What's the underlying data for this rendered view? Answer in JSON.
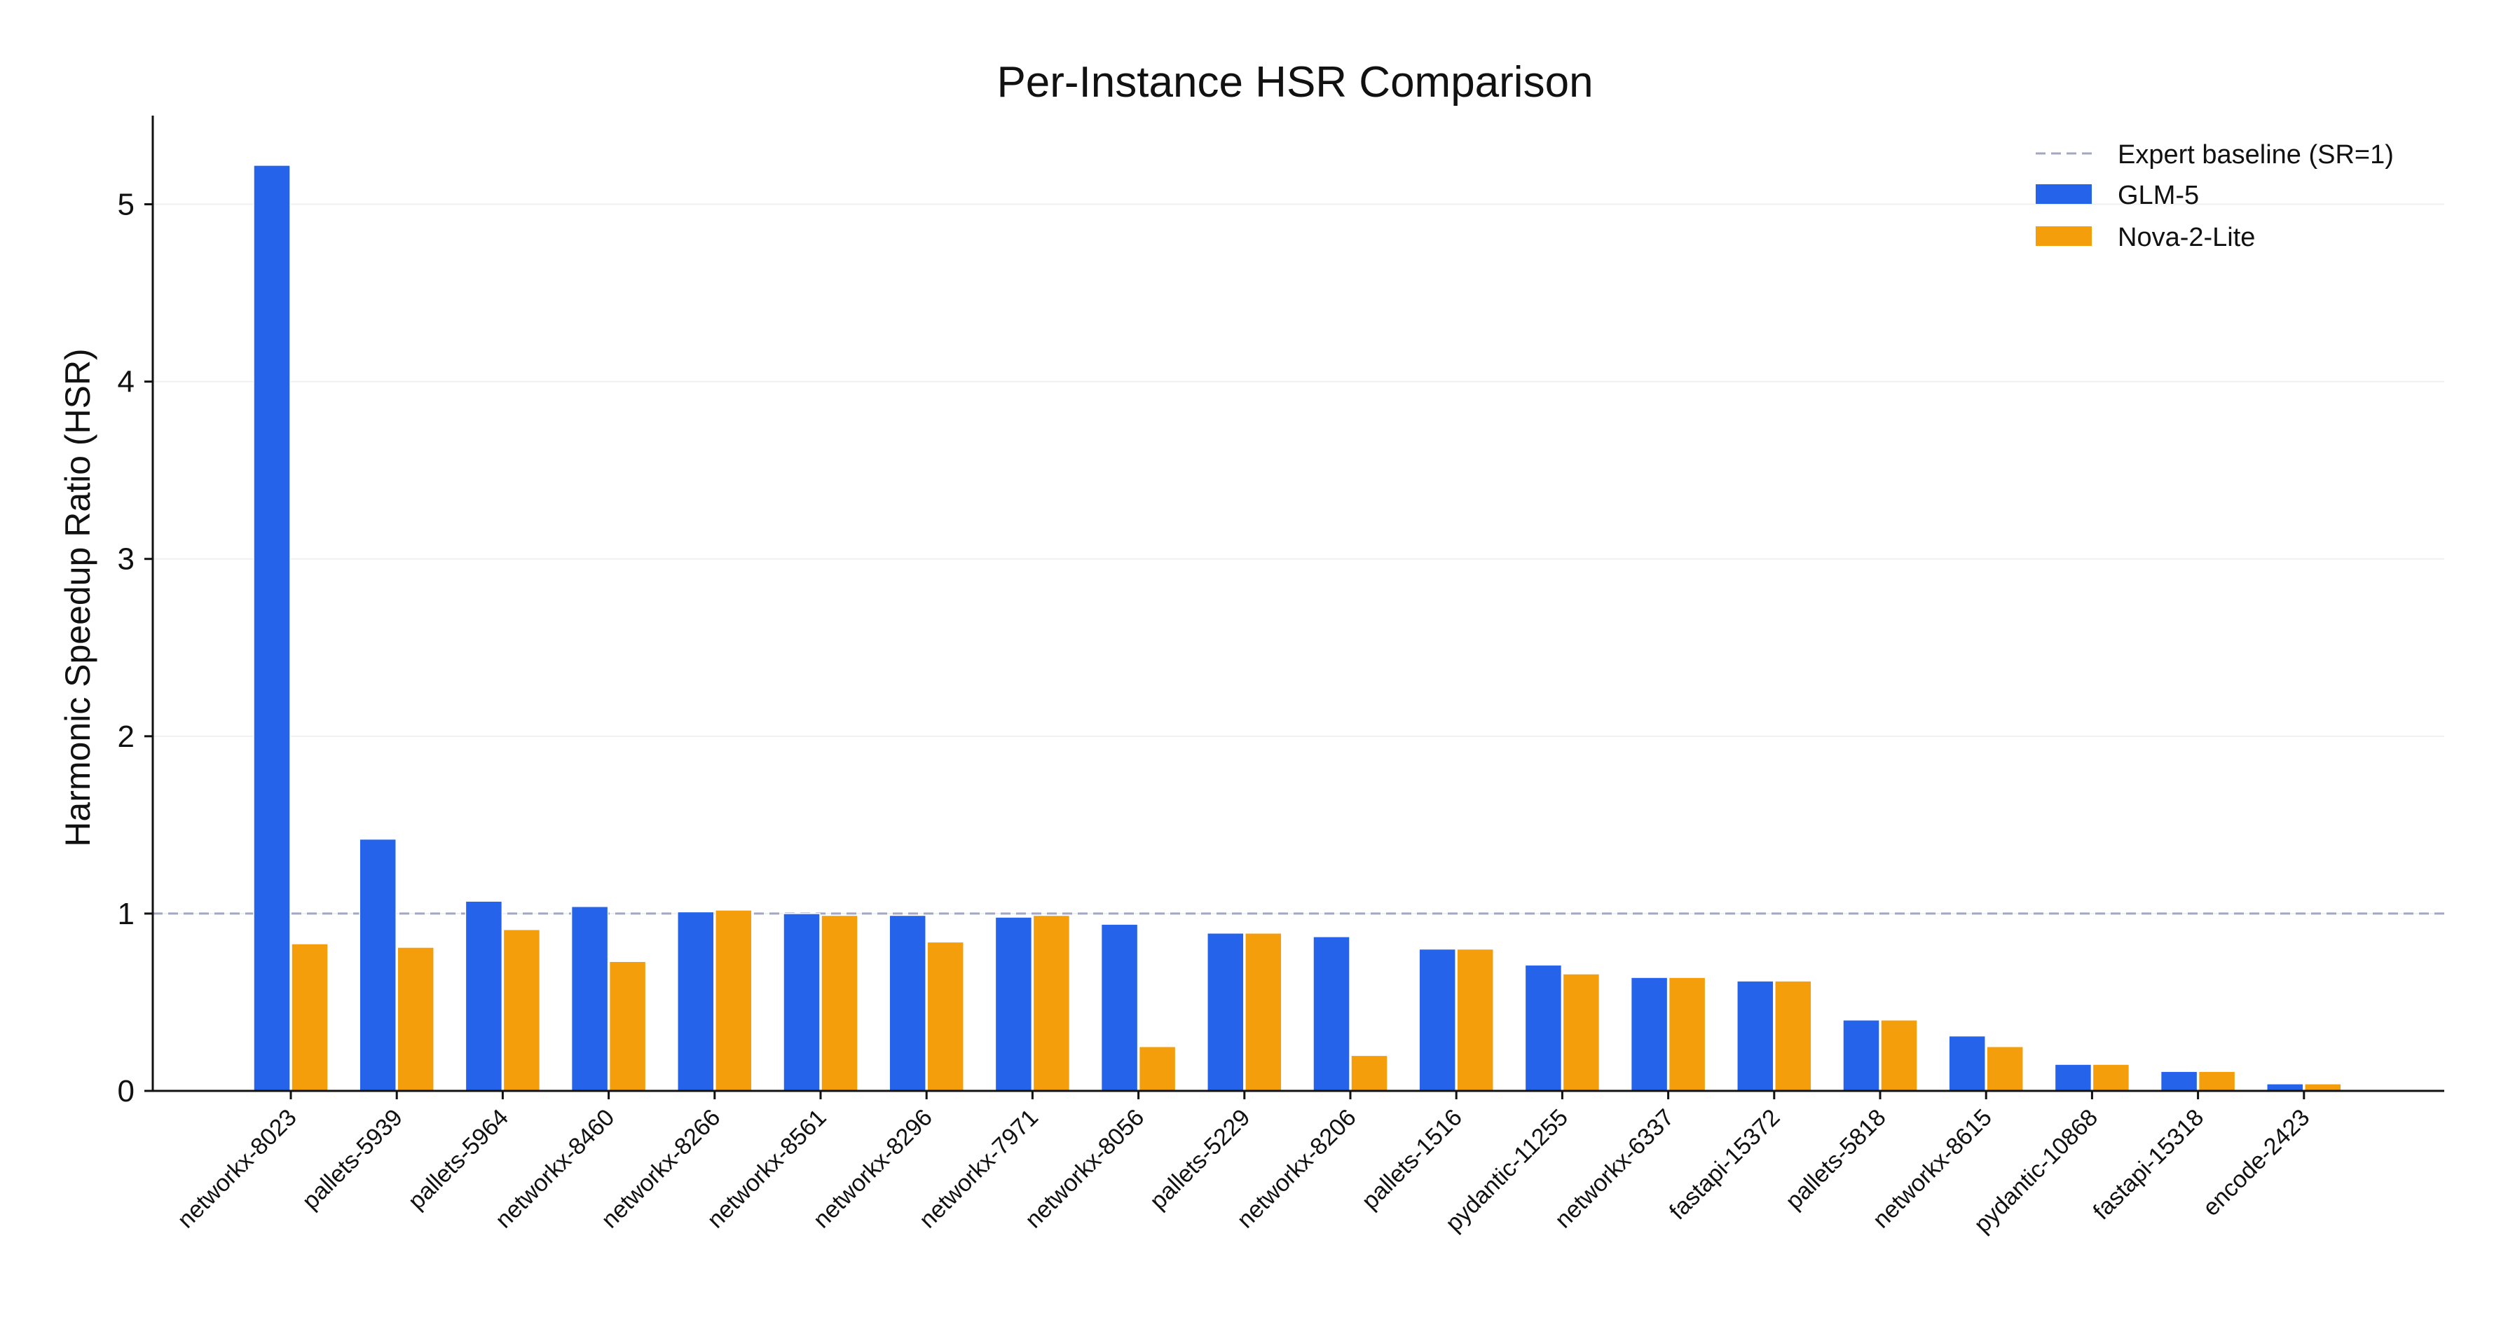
{
  "chart_data": {
    "type": "bar",
    "title": "Per-Instance HSR Comparison",
    "xlabel": "",
    "ylabel": "Harmonic Speedup Ratio (HSR)",
    "ylim": [
      0,
      5.5
    ],
    "yticks": [
      "0",
      "1",
      "2",
      "3",
      "4",
      "5"
    ],
    "grid": "horizontal",
    "legend_position": "top-right",
    "baseline": {
      "label": "Expert baseline (SR=1)",
      "value": 1.0,
      "color": "#a3a7c2"
    },
    "categories": [
      "networkx-8023",
      "pallets-5939",
      "pallets-5964",
      "networkx-8460",
      "networkx-8266",
      "networkx-8561",
      "networkx-8296",
      "networkx-7971",
      "networkx-8056",
      "pallets-5229",
      "networkx-8206",
      "pallets-1516",
      "pydantic-11255",
      "networkx-6337",
      "fastapi-15372",
      "pallets-5818",
      "networkx-8615",
      "pydantic-10868",
      "fastapi-15318",
      "encode-2423"
    ],
    "series": [
      {
        "name": "GLM-5",
        "color": "#2563eb",
        "values": [
          5.22,
          1.42,
          1.07,
          1.04,
          1.01,
          1.0,
          0.99,
          0.98,
          0.94,
          0.89,
          0.87,
          0.8,
          0.71,
          0.64,
          0.62,
          0.4,
          0.31,
          0.15,
          0.11,
          0.04
        ]
      },
      {
        "name": "Nova-2-Lite",
        "color": "#f59e0b",
        "values": [
          0.83,
          0.81,
          0.91,
          0.73,
          1.02,
          0.99,
          0.84,
          0.99,
          0.25,
          0.89,
          0.2,
          0.8,
          0.66,
          0.64,
          0.62,
          0.4,
          0.25,
          0.15,
          0.11,
          0.04
        ]
      }
    ]
  }
}
